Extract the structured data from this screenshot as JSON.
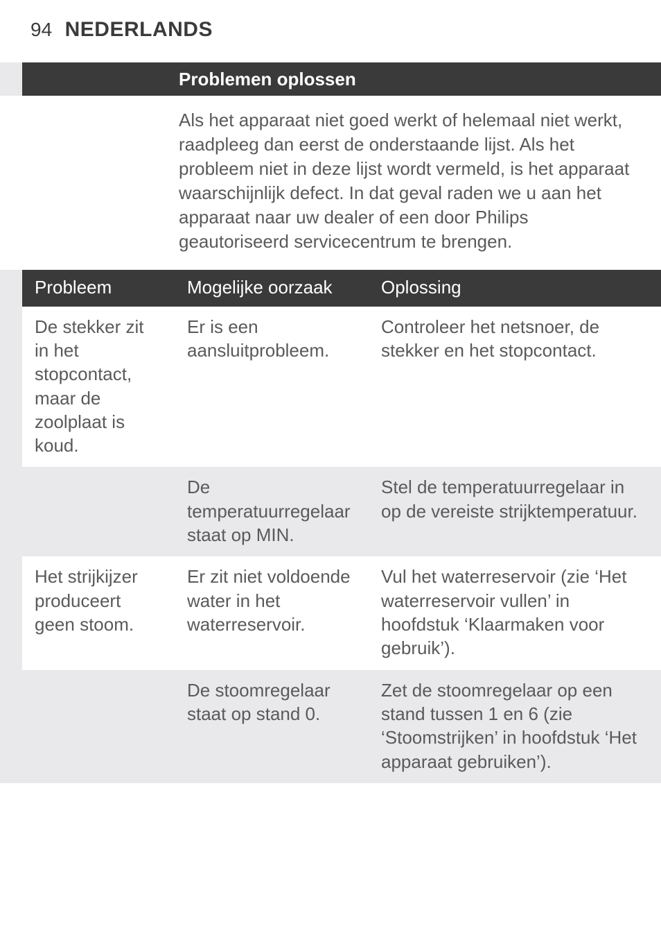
{
  "header": {
    "page_number": "94",
    "language": "NEDERLANDS"
  },
  "section": {
    "title": "Problemen oplossen",
    "intro": "Als het apparaat niet goed werkt of helemaal niet werkt, raadpleeg dan eerst de onderstaande lijst. Als het probleem niet in deze lijst wordt vermeld, is het apparaat waarschijnlijk defect. In dat geval raden we u aan het apparaat naar uw dealer of een door Philips geautoriseerd servicecentrum te brengen."
  },
  "table": {
    "columns": [
      "Probleem",
      "Mogelijke oorzaak",
      "Oplossing"
    ],
    "rows": [
      {
        "probleem": "De stekker zit in het stopcontact, maar de zoolplaat is koud.",
        "oorzaak": "Er is een aansluitprobleem.",
        "oplossing": "Controleer het netsnoer, de stekker en het stopcontact."
      },
      {
        "probleem": "",
        "oorzaak": "De temperatuurregelaar staat op MIN.",
        "oplossing": "Stel de temperatuurregelaar in op de vereiste strijktemperatuur."
      },
      {
        "probleem": "Het strijkijzer produceert geen stoom.",
        "oorzaak": "Er zit niet voldoende water in het waterreservoir.",
        "oplossing": "Vul het waterreservoir (zie ‘Het waterreservoir vullen’ in hoofdstuk ‘Klaarmaken voor gebruik’)."
      },
      {
        "probleem": "",
        "oorzaak": "De stoomregelaar staat op stand 0.",
        "oplossing": "Zet de stoomregelaar op een stand tussen 1 en 6 (zie ‘Stoomstrijken’ in hoofdstuk ‘Het apparaat gebruiken’)."
      }
    ]
  },
  "colors": {
    "header_bg": "#3a3a3a",
    "header_text": "#ffffff",
    "row_gray": "#e9e9eb",
    "row_white": "#ffffff",
    "body_text": "#5a5a5a",
    "left_bar": "#e9e9eb"
  }
}
